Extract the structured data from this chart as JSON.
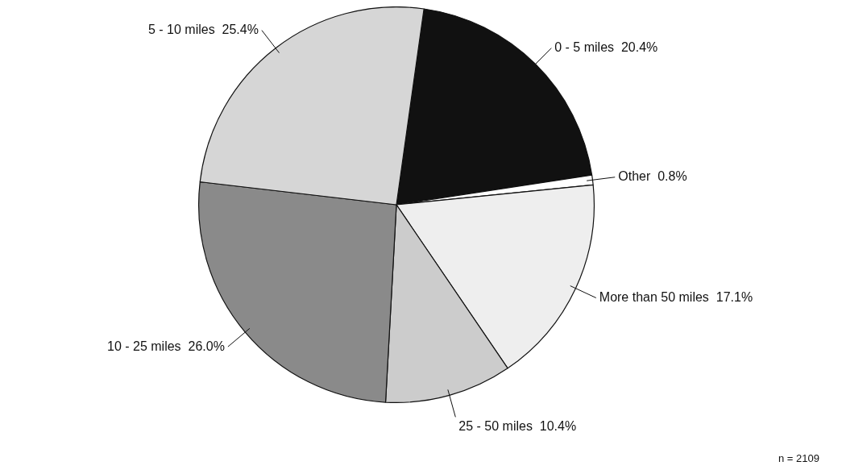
{
  "chart_data": {
    "type": "pie",
    "categories": [
      "0 - 5 miles",
      "Other",
      "More than 50 miles",
      "25 - 50 miles",
      "10 - 25 miles",
      "5 - 10 miles"
    ],
    "values": [
      20.4,
      0.8,
      17.1,
      10.4,
      26.0,
      25.4
    ],
    "value_labels": [
      "20.4%",
      "0.8%",
      "17.1%",
      "10.4%",
      "26.0%",
      "25.4%"
    ],
    "colors": [
      "#111111",
      "#ffffff",
      "#eeeeee",
      "#cccccc",
      "#8a8a8a",
      "#d6d6d6"
    ],
    "legend": false,
    "annotations": [
      "n = 2109"
    ]
  }
}
